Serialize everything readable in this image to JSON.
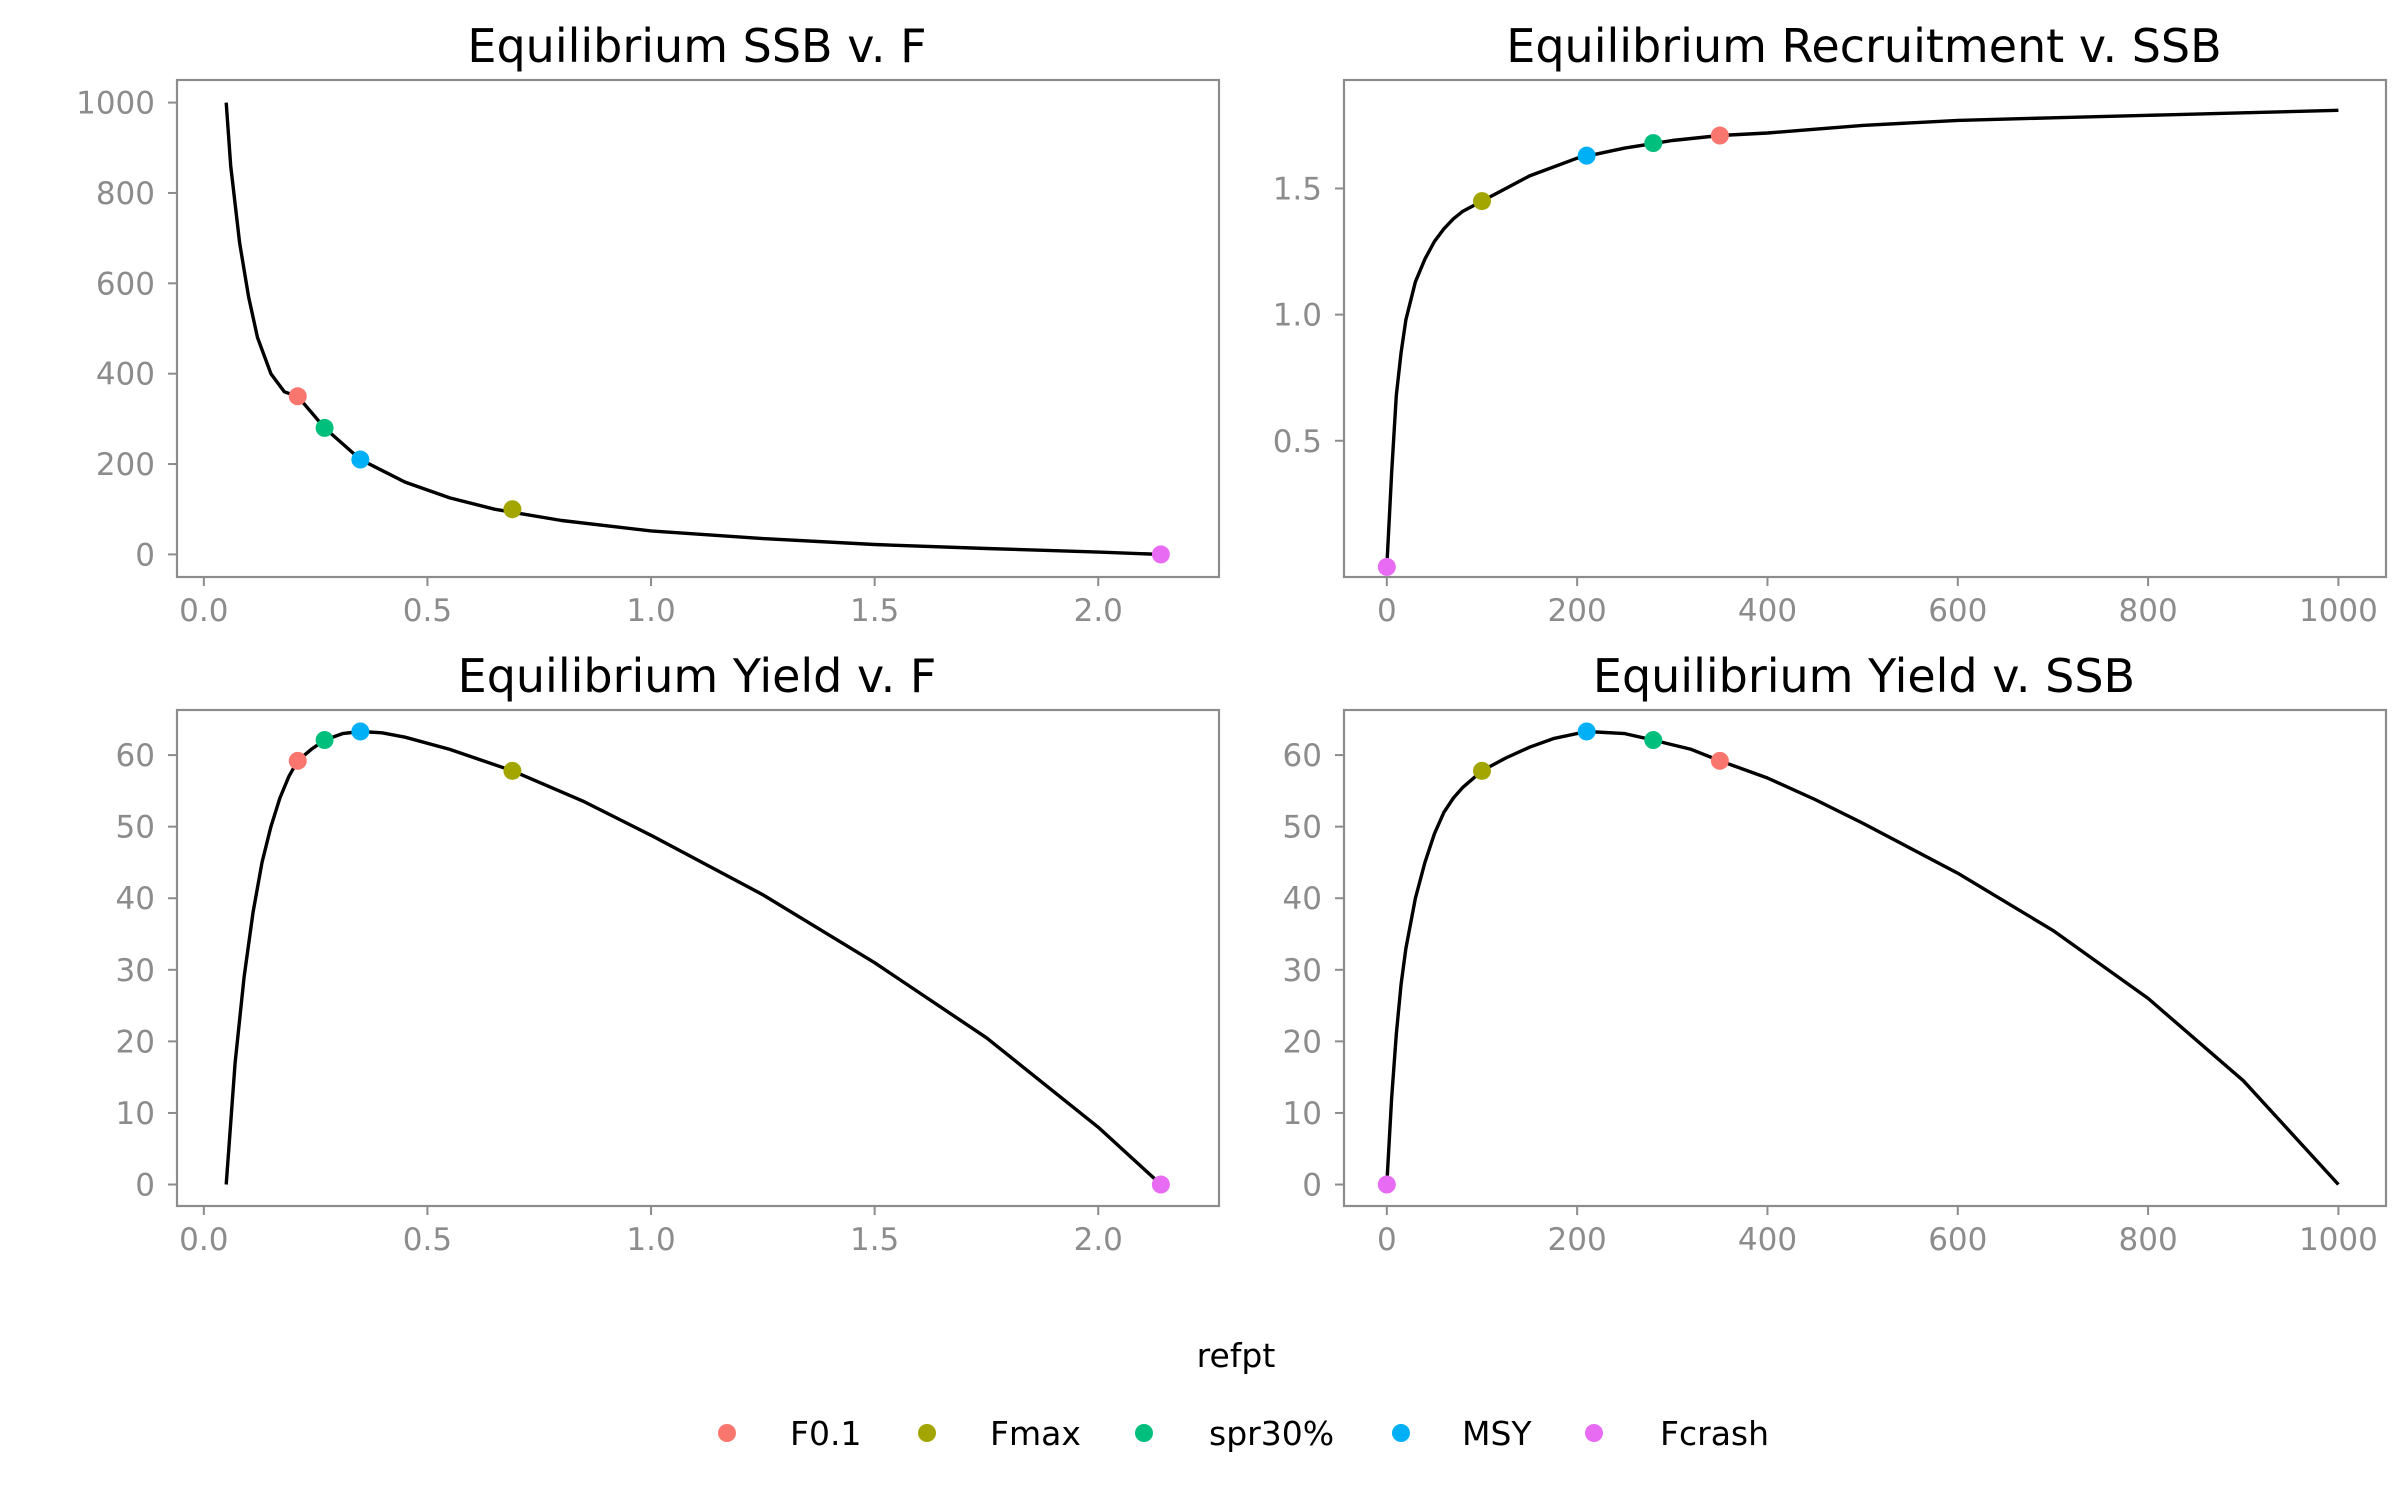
{
  "legend": {
    "title": "refpt",
    "entries": [
      {
        "label": "F0.1",
        "color": "#F8766D"
      },
      {
        "label": "Fmax",
        "color": "#A3A500"
      },
      {
        "label": "spr30%",
        "color": "#00BF7D"
      },
      {
        "label": "MSY",
        "color": "#00B0F6"
      },
      {
        "label": "Fcrash",
        "color": "#E76BF3"
      }
    ]
  },
  "chart_data": [
    {
      "type": "line",
      "title": "Equilibrium SSB v. F",
      "xlabel": "",
      "ylabel": "",
      "xlim": [
        -0.06,
        2.27
      ],
      "ylim": [
        -50,
        1050
      ],
      "xticks": [
        0,
        0.5,
        1,
        1.5,
        2
      ],
      "xtick_labels": [
        "0.0",
        "0.5",
        "1.0",
        "1.5",
        "2.0"
      ],
      "yticks": [
        0,
        200,
        400,
        600,
        800,
        1000
      ],
      "ytick_labels": [
        "0",
        "200",
        "400",
        "600",
        "800",
        "1000"
      ],
      "grid": false,
      "curve": {
        "x": [
          0.05,
          0.06,
          0.08,
          0.1,
          0.12,
          0.15,
          0.18,
          0.21,
          0.27,
          0.35,
          0.45,
          0.55,
          0.65,
          0.8,
          1.0,
          1.25,
          1.5,
          1.75,
          2.0,
          2.14
        ],
        "y": [
          1000,
          860,
          690,
          570,
          480,
          400,
          360,
          350,
          280,
          210,
          160,
          125,
          100,
          75,
          52,
          35,
          22,
          13,
          5,
          0
        ]
      },
      "points": [
        {
          "refpt": "F0.1",
          "x": 0.21,
          "y": 350
        },
        {
          "refpt": "Fmax",
          "x": 0.69,
          "y": 100
        },
        {
          "refpt": "spr30%",
          "x": 0.27,
          "y": 280
        },
        {
          "refpt": "MSY",
          "x": 0.35,
          "y": 210
        },
        {
          "refpt": "Fcrash",
          "x": 2.14,
          "y": 0
        }
      ]
    },
    {
      "type": "line",
      "title": "Equilibrium Recruitment v. SSB",
      "xlabel": "",
      "ylabel": "",
      "xlim": [
        -45,
        1050
      ],
      "ylim": [
        -0.04,
        1.93
      ],
      "xticks": [
        0,
        200,
        400,
        600,
        800,
        1000
      ],
      "xtick_labels": [
        "0",
        "200",
        "400",
        "600",
        "800",
        "1000"
      ],
      "yticks": [
        0.5,
        1.0,
        1.5
      ],
      "ytick_labels": [
        "0.5",
        "1.0",
        "1.5"
      ],
      "grid": false,
      "curve": {
        "x": [
          0,
          5,
          10,
          15,
          20,
          30,
          40,
          50,
          60,
          70,
          80,
          100,
          125,
          150,
          200,
          250,
          300,
          350,
          400,
          500,
          600,
          700,
          800,
          900,
          1000
        ],
        "y": [
          0,
          0.37,
          0.68,
          0.85,
          0.98,
          1.13,
          1.22,
          1.29,
          1.34,
          1.38,
          1.41,
          1.45,
          1.5,
          1.55,
          1.62,
          1.66,
          1.69,
          1.71,
          1.72,
          1.75,
          1.77,
          1.78,
          1.79,
          1.8,
          1.81
        ]
      },
      "points": [
        {
          "refpt": "F0.1",
          "x": 350,
          "y": 1.71
        },
        {
          "refpt": "Fmax",
          "x": 100,
          "y": 1.45
        },
        {
          "refpt": "spr30%",
          "x": 280,
          "y": 1.68
        },
        {
          "refpt": "MSY",
          "x": 210,
          "y": 1.63
        },
        {
          "refpt": "Fcrash",
          "x": 0,
          "y": 0
        }
      ]
    },
    {
      "type": "line",
      "title": "Equilibrium Yield v. F",
      "xlabel": "",
      "ylabel": "",
      "xlim": [
        -0.06,
        2.27
      ],
      "ylim": [
        -3,
        66.3
      ],
      "xticks": [
        0,
        0.5,
        1,
        1.5,
        2
      ],
      "xtick_labels": [
        "0.0",
        "0.5",
        "1.0",
        "1.5",
        "2.0"
      ],
      "yticks": [
        0,
        10,
        20,
        30,
        40,
        50,
        60
      ],
      "ytick_labels": [
        "0",
        "10",
        "20",
        "30",
        "40",
        "50",
        "60"
      ],
      "grid": false,
      "curve": {
        "x": [
          0.05,
          0.07,
          0.09,
          0.11,
          0.13,
          0.15,
          0.17,
          0.19,
          0.21,
          0.24,
          0.27,
          0.31,
          0.35,
          0.4,
          0.45,
          0.55,
          0.69,
          0.85,
          1.0,
          1.25,
          1.5,
          1.75,
          2.0,
          2.14
        ],
        "y": [
          0,
          17,
          29,
          38,
          45,
          50,
          54,
          57,
          59.2,
          60.8,
          62.1,
          63.0,
          63.3,
          63.1,
          62.5,
          60.8,
          57.8,
          53.5,
          48.8,
          40.5,
          31.0,
          20.5,
          8.0,
          0
        ]
      },
      "points": [
        {
          "refpt": "F0.1",
          "x": 0.21,
          "y": 59.2
        },
        {
          "refpt": "Fmax",
          "x": 0.69,
          "y": 57.8
        },
        {
          "refpt": "spr30%",
          "x": 0.27,
          "y": 62.1
        },
        {
          "refpt": "MSY",
          "x": 0.35,
          "y": 63.3
        },
        {
          "refpt": "Fcrash",
          "x": 2.14,
          "y": 0
        }
      ]
    },
    {
      "type": "line",
      "title": "Equilibrium Yield v. SSB",
      "xlabel": "",
      "ylabel": "",
      "xlim": [
        -45,
        1050
      ],
      "ylim": [
        -3,
        66.3
      ],
      "xticks": [
        0,
        200,
        400,
        600,
        800,
        1000
      ],
      "xtick_labels": [
        "0",
        "200",
        "400",
        "600",
        "800",
        "1000"
      ],
      "yticks": [
        0,
        10,
        20,
        30,
        40,
        50,
        60
      ],
      "ytick_labels": [
        "0",
        "10",
        "20",
        "30",
        "40",
        "50",
        "60"
      ],
      "grid": false,
      "curve": {
        "x": [
          0,
          5,
          10,
          15,
          20,
          30,
          40,
          50,
          60,
          70,
          80,
          100,
          125,
          150,
          175,
          210,
          250,
          280,
          320,
          350,
          400,
          450,
          500,
          600,
          700,
          800,
          900,
          1000
        ],
        "y": [
          0,
          12,
          21,
          28,
          33,
          40,
          45,
          49,
          52,
          54,
          55.5,
          57.8,
          59.6,
          61.1,
          62.3,
          63.3,
          63.0,
          62.1,
          60.8,
          59.2,
          56.8,
          53.8,
          50.5,
          43.5,
          35.5,
          26.0,
          14.5,
          0
        ]
      },
      "points": [
        {
          "refpt": "F0.1",
          "x": 350,
          "y": 59.2
        },
        {
          "refpt": "Fmax",
          "x": 100,
          "y": 57.8
        },
        {
          "refpt": "spr30%",
          "x": 280,
          "y": 62.1
        },
        {
          "refpt": "MSY",
          "x": 210,
          "y": 63.3
        },
        {
          "refpt": "Fcrash",
          "x": 0,
          "y": 0
        }
      ]
    }
  ]
}
